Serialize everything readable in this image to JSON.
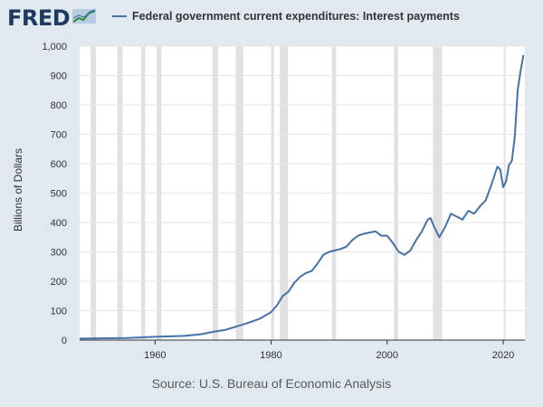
{
  "brand": {
    "logo_text": "FRED",
    "logo_icon": "chart-trend-icon"
  },
  "legend": {
    "label": "Federal government current expenditures: Interest payments",
    "color": "#4572a7"
  },
  "source": "Source: U.S. Bureau of Economic Analysis",
  "chart_data": {
    "type": "line",
    "ylabel": "Billions of Dollars",
    "xlim": [
      1947,
      2023.75
    ],
    "ylim": [
      0,
      1000
    ],
    "y_ticks": [
      0,
      100,
      200,
      300,
      400,
      500,
      600,
      700,
      800,
      900,
      1000
    ],
    "y_tick_labels": [
      "0",
      "100",
      "200",
      "300",
      "400",
      "500",
      "600",
      "700",
      "800",
      "900",
      "1,000"
    ],
    "x_ticks": [
      1960,
      1980,
      2000,
      2020
    ],
    "x_tick_labels": [
      "1960",
      "1980",
      "2000",
      "2020"
    ],
    "grid": "horizontal",
    "legend_position": "top",
    "recessions": [
      [
        1948.9,
        1949.8
      ],
      [
        1953.5,
        1954.4
      ],
      [
        1957.6,
        1958.3
      ],
      [
        1960.3,
        1961.1
      ],
      [
        1969.9,
        1970.9
      ],
      [
        1973.9,
        1975.2
      ],
      [
        1980.0,
        1980.5
      ],
      [
        1981.5,
        1982.9
      ],
      [
        1990.5,
        1991.2
      ],
      [
        2001.2,
        2001.9
      ],
      [
        2007.9,
        2009.5
      ],
      [
        2020.1,
        2020.4
      ]
    ],
    "series": [
      {
        "color": "#4572a7",
        "x": [
          1947,
          1950,
          1955,
          1960,
          1965,
          1968,
          1970,
          1972,
          1974,
          1976,
          1978,
          1980,
          1981,
          1982,
          1983,
          1984,
          1985,
          1986,
          1987,
          1988,
          1989,
          1990,
          1991,
          1992,
          1993,
          1994,
          1995,
          1996,
          1997,
          1998,
          1999,
          2000,
          2001,
          2002,
          2003,
          2004,
          2005,
          2006,
          2007,
          2007.5,
          2008,
          2009,
          2010,
          2011,
          2012,
          2013,
          2014,
          2015,
          2016,
          2017,
          2018,
          2019,
          2019.5,
          2020,
          2020.5,
          2021,
          2021.5,
          2022,
          2022.5,
          2023,
          2023.5
        ],
        "y": [
          5,
          6,
          7,
          11,
          14,
          20,
          28,
          34,
          46,
          58,
          72,
          95,
          118,
          150,
          165,
          195,
          215,
          228,
          235,
          260,
          290,
          300,
          305,
          310,
          318,
          340,
          355,
          362,
          366,
          370,
          355,
          355,
          330,
          300,
          290,
          305,
          340,
          370,
          410,
          415,
          390,
          350,
          385,
          430,
          420,
          410,
          440,
          430,
          455,
          475,
          530,
          590,
          580,
          520,
          540,
          595,
          610,
          690,
          850,
          915,
          970
        ]
      }
    ]
  }
}
